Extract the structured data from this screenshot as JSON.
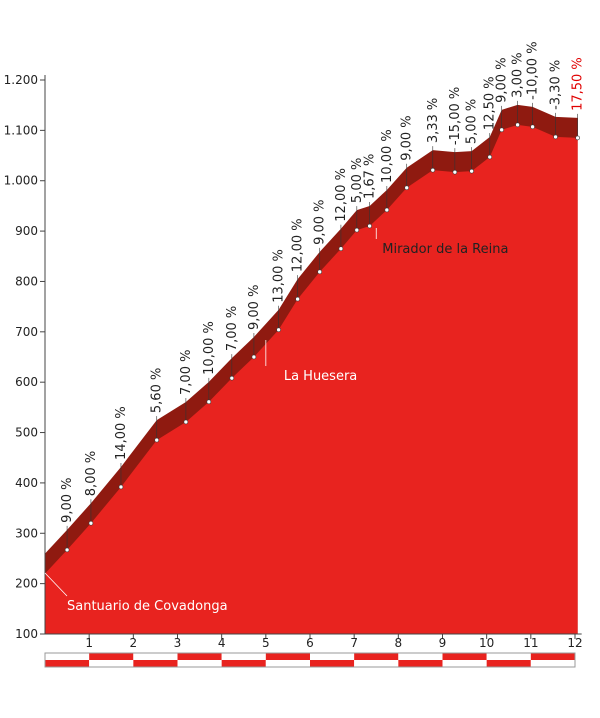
{
  "chart_data": {
    "type": "area",
    "x": [
      0,
      0.5,
      1.04,
      1.72,
      2.53,
      3.19,
      3.71,
      4.23,
      4.73,
      5.29,
      5.72,
      6.22,
      6.7,
      7.06,
      7.35,
      7.74,
      8.19,
      8.78,
      9.28,
      9.66,
      10.07,
      10.34,
      10.7,
      11.04,
      11.56,
      12.06
    ],
    "values": [
      220,
      267,
      320,
      392,
      485,
      521,
      561,
      608,
      650,
      704,
      765,
      819,
      865,
      902,
      910,
      942,
      986,
      1021,
      1017,
      1019,
      1047,
      1101,
      1111,
      1107,
      1087,
      1085
    ],
    "gradients": [
      null,
      9,
      8,
      14,
      5.6,
      7,
      10,
      7,
      9,
      13,
      12,
      9,
      12,
      5,
      1.67,
      10,
      9,
      3.33,
      -15,
      5,
      12.5,
      9,
      3,
      -10,
      -3.3,
      17.5
    ],
    "gradient_labels": [
      null,
      "9,00 %",
      "8,00 %",
      "14,00 %",
      "5,60 %",
      "7,00 %",
      "10,00 %",
      "7,00 %",
      "9,00 %",
      "13,00 %",
      "12,00 %",
      "9,00 %",
      "12,00 %",
      "5,00 %",
      "1,67 %",
      "10,00 %",
      "9,00 %",
      "3,33 %",
      "-15,00 %",
      "5,00 %",
      "12,50 %",
      "9,00 %",
      "3,00 %",
      "-10,00 %",
      "-3,30 %",
      "17,50 %"
    ],
    "color": "#e8231f",
    "band_color": "#8f1a10",
    "label_color": "#222",
    "max_gradient_color": "#e00000",
    "xlim": [
      0,
      12
    ],
    "xticks": [
      1,
      2,
      3,
      4,
      5,
      6,
      7,
      8,
      9,
      10,
      11,
      12
    ],
    "ylim": [
      100,
      1200
    ],
    "yticks": [
      100,
      200,
      300,
      400,
      500,
      600,
      700,
      800,
      900,
      {
        "value": 1000,
        "label": "1.000"
      },
      {
        "value": 1100,
        "label": "1.100"
      },
      {
        "value": 1200,
        "label": "1.200"
      }
    ],
    "annotations": [
      {
        "text": "Santuario de Covadonga",
        "x": 0
      },
      {
        "text": "La Huesera",
        "x": 5
      },
      {
        "text": "Mirador de la Reina",
        "x": 7.5
      }
    ]
  }
}
